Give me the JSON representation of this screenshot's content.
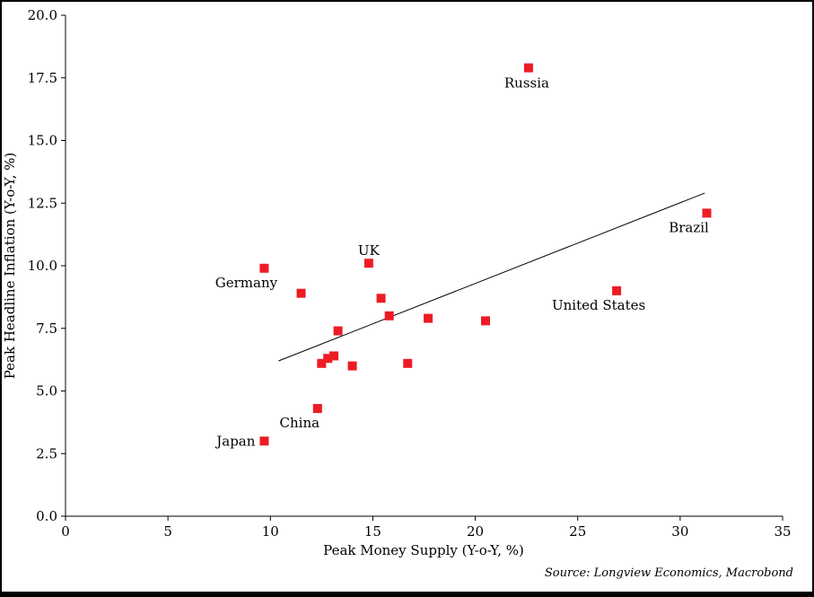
{
  "chart_data": {
    "type": "scatter",
    "title": "",
    "xlabel": "Peak Money Supply (Y-o-Y, %)",
    "ylabel": "Peak Headline Inflation (Y-o-Y, %)",
    "source": "Source: Longview Economics, Macrobond",
    "xlim": [
      0,
      35
    ],
    "ylim": [
      0,
      20
    ],
    "xticks": [
      0,
      5,
      10,
      15,
      20,
      25,
      30,
      35
    ],
    "yticks": [
      0,
      2.5,
      5,
      7.5,
      10,
      12.5,
      15,
      17.5,
      20
    ],
    "grid": false,
    "legend": "none",
    "background_color": "#ffffff",
    "axis_color": "#000000",
    "marker": {
      "shape": "square",
      "color": "#ed1c24",
      "size": 10
    },
    "points": [
      {
        "x": 22.6,
        "y": 17.9,
        "label": "Russia",
        "label_pos": "below"
      },
      {
        "x": 31.3,
        "y": 12.1,
        "label": "Brazil",
        "label_pos": "below-left"
      },
      {
        "x": 9.7,
        "y": 9.9,
        "label": "Germany",
        "label_pos": "below-left"
      },
      {
        "x": 14.8,
        "y": 10.1,
        "label": "UK",
        "label_pos": "above"
      },
      {
        "x": 26.9,
        "y": 9.0,
        "label": "United States",
        "label_pos": "below-left"
      },
      {
        "x": 11.5,
        "y": 8.9
      },
      {
        "x": 15.4,
        "y": 8.7
      },
      {
        "x": 15.8,
        "y": 8.0
      },
      {
        "x": 17.7,
        "y": 7.9
      },
      {
        "x": 20.5,
        "y": 7.8
      },
      {
        "x": 13.3,
        "y": 7.4
      },
      {
        "x": 12.5,
        "y": 6.1
      },
      {
        "x": 12.8,
        "y": 6.3
      },
      {
        "x": 13.1,
        "y": 6.4
      },
      {
        "x": 14.0,
        "y": 6.0
      },
      {
        "x": 16.7,
        "y": 6.1
      },
      {
        "x": 12.3,
        "y": 4.3,
        "label": "China",
        "label_pos": "below-left"
      },
      {
        "x": 9.7,
        "y": 3.0,
        "label": "Japan",
        "label_pos": "left"
      }
    ],
    "trendline": {
      "x1": 10.4,
      "y1": 6.2,
      "x2": 31.2,
      "y2": 12.9,
      "color": "#000000"
    }
  }
}
